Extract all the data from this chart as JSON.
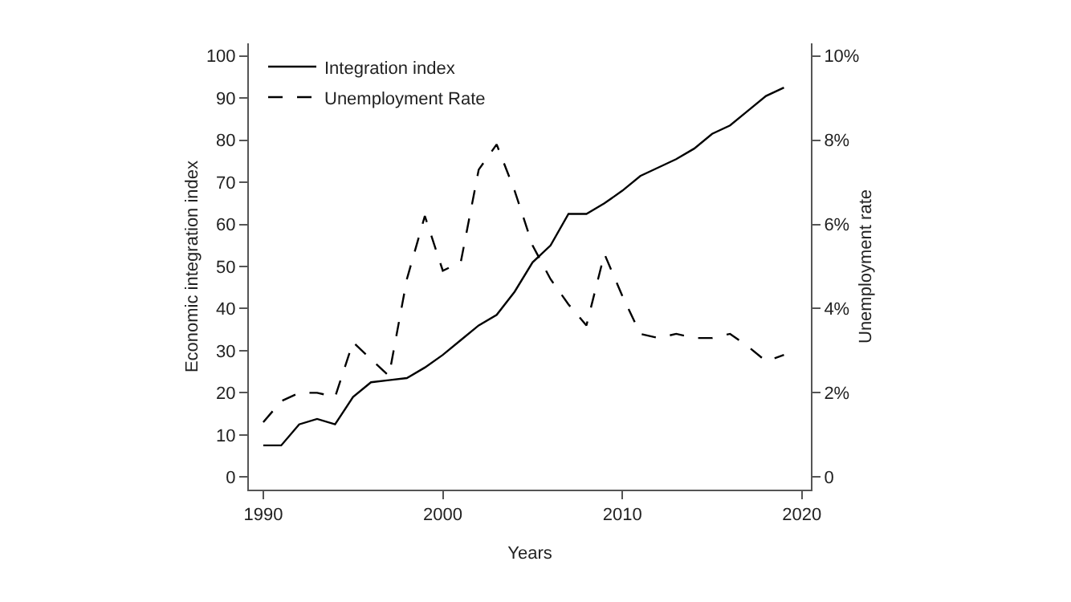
{
  "chart_data": {
    "type": "line",
    "xlabel": "Years",
    "ylabel": "Economic integration index",
    "y2label": "Unemployment rate",
    "x": [
      1990,
      1991,
      1992,
      1993,
      1994,
      1995,
      1996,
      1997,
      1998,
      1999,
      2000,
      2001,
      2002,
      2003,
      2004,
      2005,
      2006,
      2007,
      2008,
      2009,
      2010,
      2011,
      2012,
      2013,
      2014,
      2015,
      2016,
      2017,
      2018,
      2019
    ],
    "series": [
      {
        "name": "Integration index",
        "color": "#000000",
        "line_style": "solid",
        "values": [
          7.5,
          7.5,
          12.5,
          13.8,
          12.5,
          19,
          22.5,
          23,
          23.5,
          26,
          29,
          32.5,
          36,
          38.5,
          44,
          51,
          55,
          62.5,
          62.5,
          65,
          68,
          71.5,
          73.5,
          75.5,
          78,
          81.5,
          83.5,
          87,
          90.5,
          92.5
        ]
      },
      {
        "name": "Unemployment Rate",
        "color": "#000000",
        "line_style": "dashed",
        "axis": "y2",
        "values": [
          1.3,
          1.8,
          2.0,
          2.0,
          1.9,
          3.2,
          2.8,
          2.4,
          4.7,
          6.2,
          4.9,
          5.1,
          7.3,
          7.9,
          6.8,
          5.5,
          4.7,
          4.1,
          3.6,
          5.3,
          4.3,
          3.4,
          3.3,
          3.4,
          3.3,
          3.3,
          3.4,
          3.1,
          2.75,
          2.9
        ]
      }
    ],
    "xlim": [
      1989.2,
      2020.5
    ],
    "xticks": [
      1990,
      2000,
      2010,
      2020
    ],
    "ylim": [
      -3,
      103
    ],
    "yticks": [
      0,
      10,
      20,
      30,
      40,
      50,
      60,
      70,
      80,
      90,
      100
    ],
    "y2lim": [
      -0.3,
      10.3
    ],
    "y2ticks": [
      {
        "value": 0,
        "label": "0"
      },
      {
        "value": 2,
        "label": "2%"
      },
      {
        "value": 4,
        "label": "4%"
      },
      {
        "value": 6,
        "label": "6%"
      },
      {
        "value": 8,
        "label": "8%"
      },
      {
        "value": 10,
        "label": "10%"
      }
    ],
    "grid": false,
    "legend": "top left",
    "marker": "none"
  }
}
